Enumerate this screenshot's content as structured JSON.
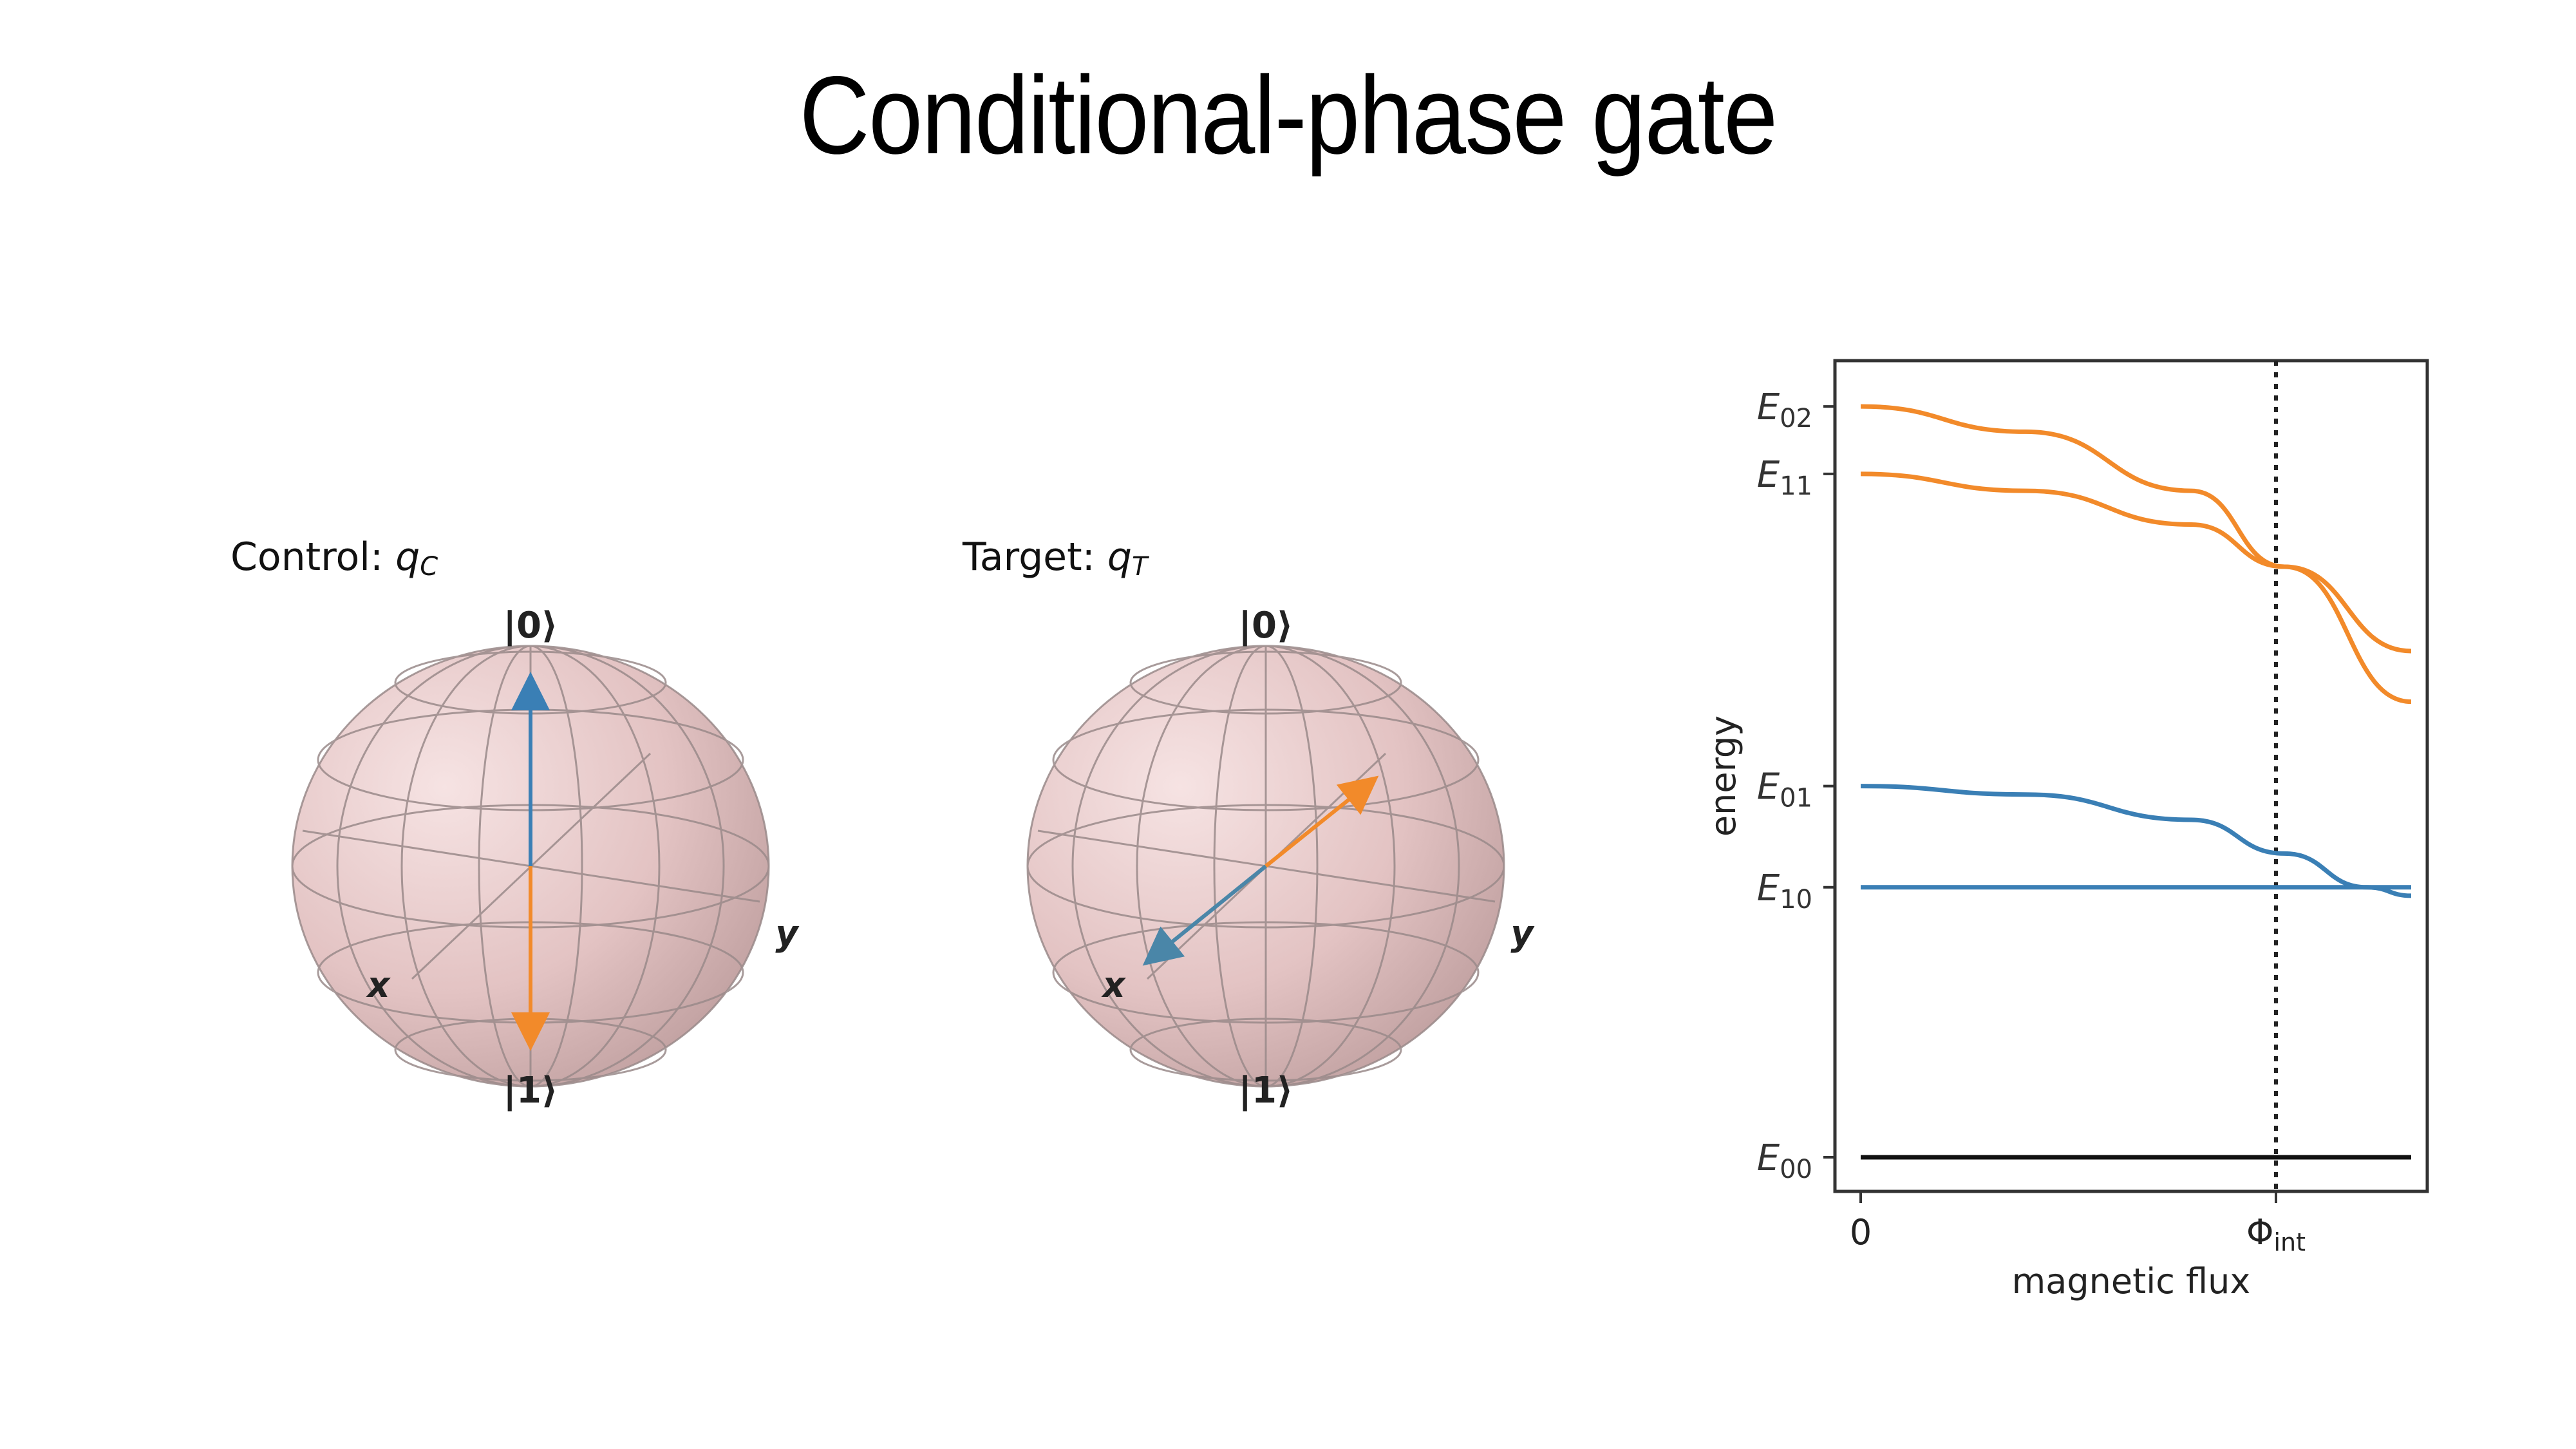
{
  "slide": {
    "title": "Conditional-phase gate"
  },
  "control": {
    "label": "Control: ",
    "qubit_symbol": "q",
    "qubit_sub": "C",
    "ket0": "|0⟩",
    "ket1": "|1⟩",
    "x_label": "x",
    "y_label": "y"
  },
  "target": {
    "label": "Target: ",
    "qubit_symbol": "q",
    "qubit_sub": "T",
    "ket0": "|0⟩",
    "ket1": "|1⟩",
    "x_label": "x",
    "y_label": "y"
  },
  "colors": {
    "sphere": "#e8c9c9",
    "blue": "#3a7fb5",
    "orange": "#f28a2a",
    "black": "#111111"
  },
  "chart_data": {
    "type": "line",
    "xlabel": "magnetic flux",
    "ylabel": "energy",
    "xticks": [
      "0",
      "Φ_int"
    ],
    "xtick_main": "0",
    "xtick_phi": "Φ",
    "xtick_phi_sub": "int",
    "yticks": [
      {
        "sym": "E",
        "sub": "02"
      },
      {
        "sym": "E",
        "sub": "11"
      },
      {
        "sym": "E",
        "sub": "01"
      },
      {
        "sym": "E",
        "sub": "10"
      },
      {
        "sym": "E",
        "sub": "00"
      }
    ],
    "series": [
      {
        "level": "E02",
        "color": "orange",
        "x": [
          0,
          0.3,
          0.6,
          0.77,
          1.0
        ],
        "y": [
          8.9,
          8.6,
          7.9,
          7.0,
          5.4
        ]
      },
      {
        "level": "E11",
        "color": "orange",
        "x": [
          0,
          0.3,
          0.6,
          0.77,
          1.0
        ],
        "y": [
          8.1,
          7.9,
          7.5,
          7.0,
          6.0
        ]
      },
      {
        "level": "E01",
        "color": "blue",
        "x": [
          0,
          0.3,
          0.6,
          0.77,
          0.92,
          1.0
        ],
        "y": [
          4.4,
          4.3,
          4.0,
          3.6,
          3.2,
          3.1
        ]
      },
      {
        "level": "E10",
        "color": "blue",
        "x": [
          0,
          0.5,
          0.77,
          0.92,
          1.0
        ],
        "y": [
          3.2,
          3.2,
          3.2,
          3.2,
          3.2
        ]
      },
      {
        "level": "E00",
        "color": "black",
        "x": [
          0,
          1.0
        ],
        "y": [
          0,
          0
        ]
      }
    ],
    "vline_at": 0.77
  }
}
